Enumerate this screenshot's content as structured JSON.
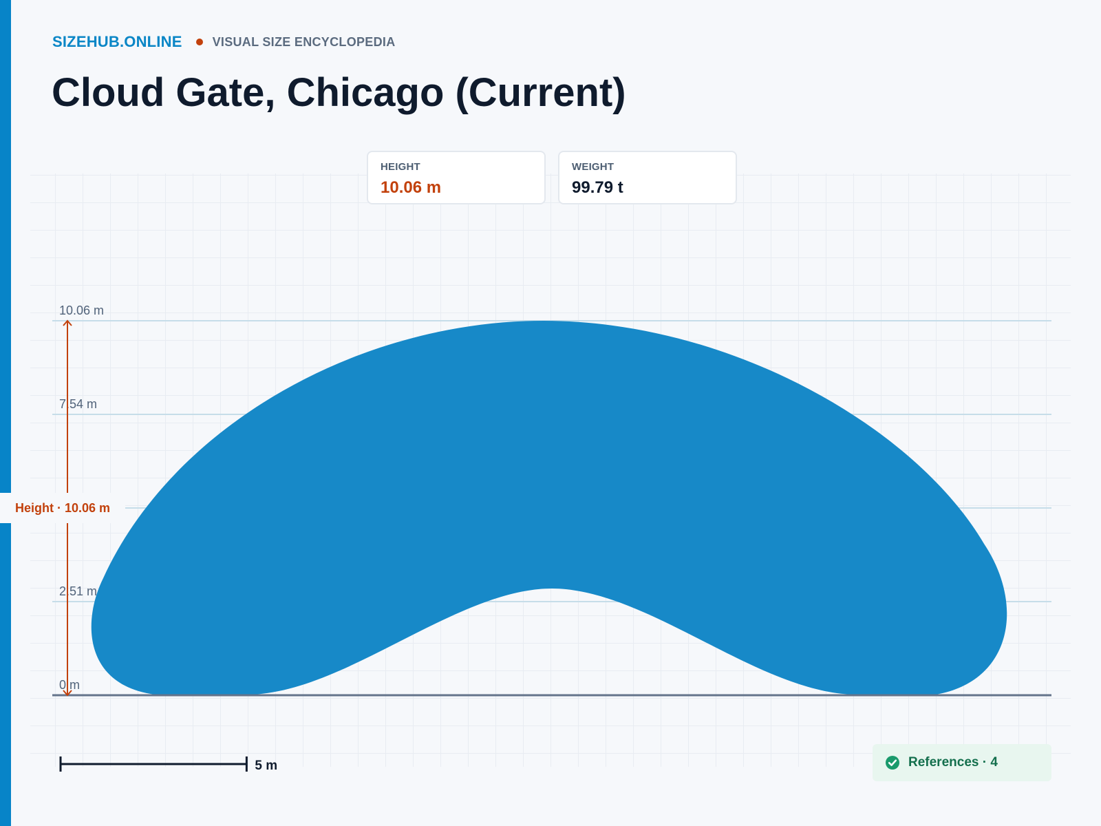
{
  "header": {
    "brand": "SIZEHUB.ONLINE",
    "subtitle": "VISUAL SIZE ENCYCLOPEDIA",
    "title": "Cloud Gate, Chicago (Current)"
  },
  "stats": [
    {
      "label": "HEIGHT",
      "value": "10.06 m",
      "color": "#c2410c"
    },
    {
      "label": "WEIGHT",
      "value": "99.79 t",
      "color": "#0f1b2d"
    }
  ],
  "diagram": {
    "object_color": "#1789c8",
    "measure_color": "#c2410c",
    "height_m": 10.06,
    "levels": [
      {
        "value": 0,
        "label": "0 m"
      },
      {
        "value": 2.515,
        "label": "2.51 m"
      },
      {
        "value": 5.03,
        "label": ""
      },
      {
        "value": 7.545,
        "label": "7.54 m"
      },
      {
        "value": 10.06,
        "label": "10.06 m"
      }
    ],
    "height_badge": "Height · 10.06 m",
    "scale_bar": {
      "length_m": 5,
      "label": "5 m"
    }
  },
  "footer": {
    "references_icon": "check-circle-icon",
    "references_label": "References · 4",
    "references_color": "#146f4d"
  }
}
